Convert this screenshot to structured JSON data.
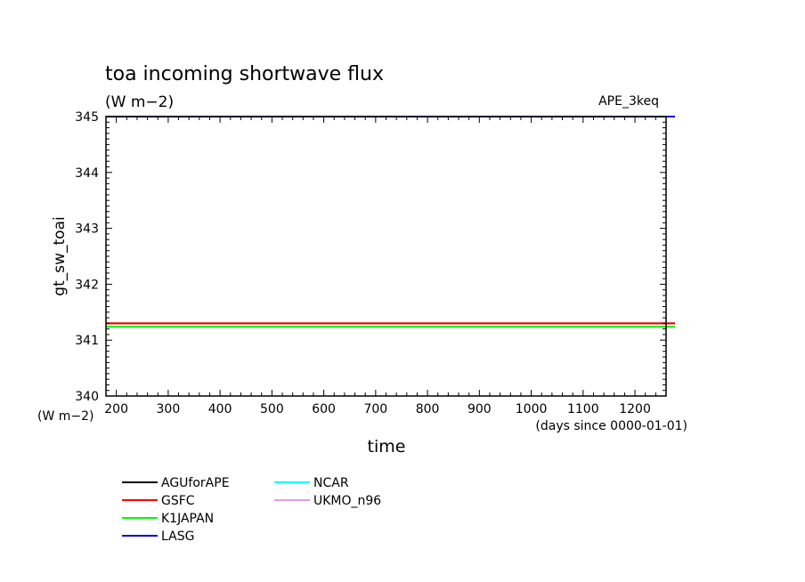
{
  "chart_data": {
    "type": "line",
    "title": "toa incoming shortwave flux",
    "subtitle": "(W m−2)",
    "run_label": "APE_3keq",
    "ylabel": "gt_sw_toai",
    "yunit": "(W m−2)",
    "xlabel": "time",
    "xunit": "(days since 0000-01-01)",
    "xlim": [
      180,
      1260
    ],
    "ylim": [
      340,
      345
    ],
    "xticks": [
      200,
      300,
      400,
      500,
      600,
      700,
      800,
      900,
      1000,
      1100,
      1200
    ],
    "yticks": [
      340,
      341,
      342,
      343,
      344,
      345
    ],
    "grid": false,
    "legend_position": "bottom-left",
    "series": [
      {
        "name": "AGUforAPE",
        "color": "#000000",
        "x": [
          180,
          1260
        ],
        "y": [
          341.3,
          341.3
        ]
      },
      {
        "name": "GSFC",
        "color": "#ff0000",
        "x": [
          180,
          1260
        ],
        "y": [
          341.3,
          341.3
        ]
      },
      {
        "name": "K1JAPAN",
        "color": "#00ff00",
        "x": [
          180,
          1260
        ],
        "y": [
          341.24,
          341.24
        ]
      },
      {
        "name": "LASG",
        "color": "#0000cc",
        "x": [
          180,
          1260
        ],
        "y": [
          345.0,
          345.0
        ]
      },
      {
        "name": "NCAR",
        "color": "#00ffff",
        "x": [
          180,
          1260
        ],
        "y": [
          341.24,
          341.24
        ]
      },
      {
        "name": "UKMO_n96",
        "color": "#dda0dd",
        "x": [
          180,
          1260
        ],
        "y": [
          341.24,
          341.24
        ]
      }
    ]
  }
}
